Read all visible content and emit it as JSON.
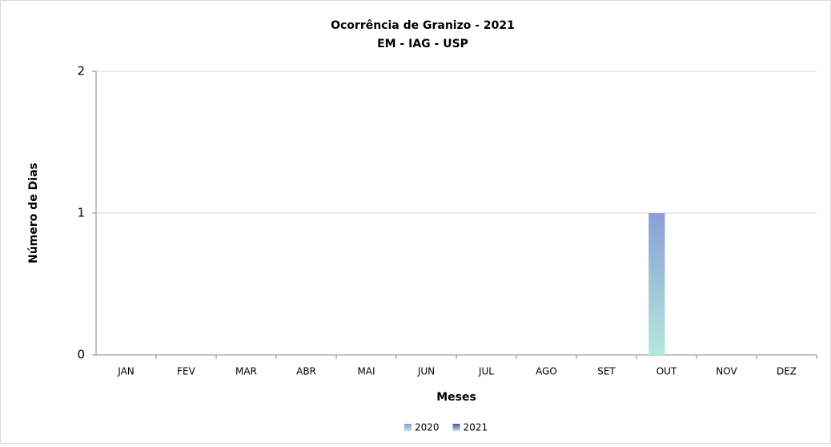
{
  "chart_data": {
    "type": "bar",
    "title": "Ocorrência de Granizo - 2021",
    "subtitle": "EM - IAG - USP",
    "x_label": "Meses",
    "y_label": "Número de Dias",
    "categories": [
      "JAN",
      "FEV",
      "MAR",
      "ABR",
      "MAI",
      "JUN",
      "JUL",
      "AGO",
      "SET",
      "OUT",
      "NOV",
      "DEZ"
    ],
    "series": [
      {
        "name": "2020",
        "color": "#8a9fd6",
        "values": [
          0,
          0,
          0,
          0,
          0,
          0,
          0,
          0,
          0,
          1,
          0,
          0
        ]
      },
      {
        "name": "2021",
        "color": "#5b4a9e",
        "values": [
          0,
          0,
          0,
          0,
          0,
          0,
          0,
          0,
          0,
          0,
          0,
          0
        ]
      }
    ],
    "ylim": [
      0,
      2
    ],
    "yticks": [
      0,
      1,
      2
    ],
    "grid": true,
    "legend": "bottom"
  }
}
